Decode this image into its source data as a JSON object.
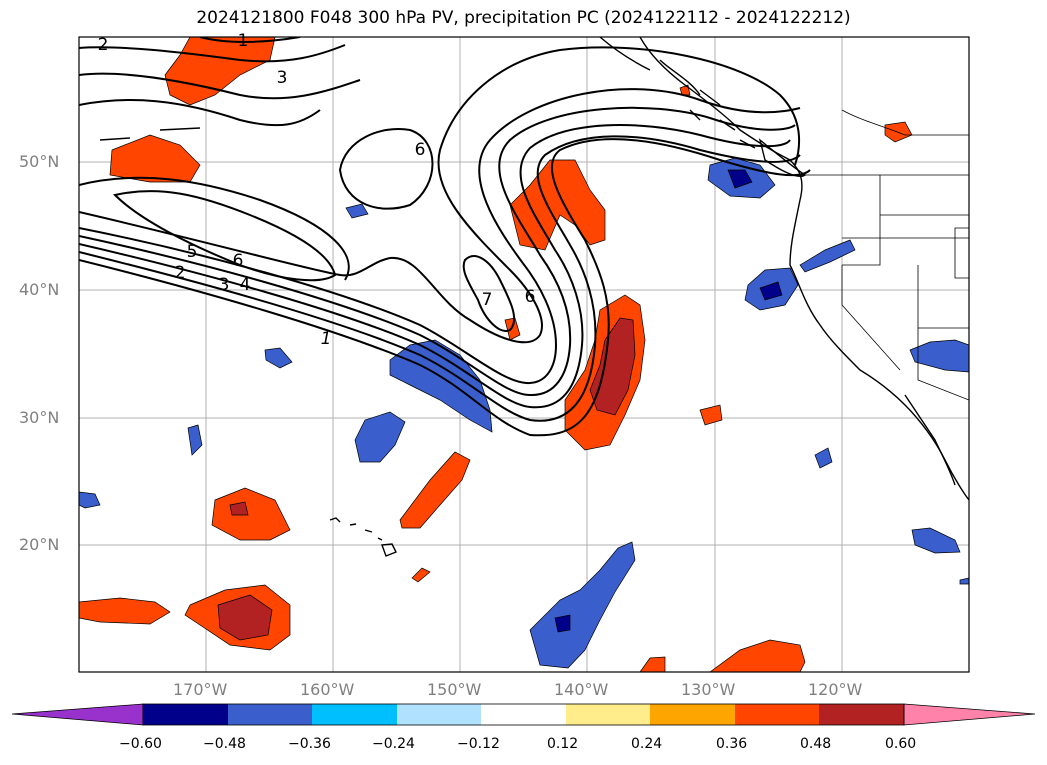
{
  "title": "2024121800 F048 300 hPa PV, precipitation PC (2024122112 - 2024122212)",
  "lat_labels": [
    "50°N",
    "40°N",
    "30°N",
    "20°N"
  ],
  "lon_labels": [
    "170°W",
    "160°W",
    "150°W",
    "140°W",
    "130°W",
    "120°W"
  ],
  "contour_labels": [
    "1",
    "2",
    "3",
    "4",
    "5",
    "6",
    "7",
    "2",
    "3",
    "6",
    "6",
    "1"
  ],
  "colorbar": {
    "ticks": [
      "−0.60",
      "−0.48",
      "−0.36",
      "−0.24",
      "−0.12",
      "0.12",
      "0.24",
      "0.36",
      "0.48",
      "0.60"
    ],
    "colors": [
      "#9932cc",
      "#00008b",
      "#3a5fcd",
      "#00bfff",
      "#b0e2ff",
      "#ffffff",
      "#ffec8b",
      "#ffa500",
      "#ff4500",
      "#b22222",
      "#ff82ab"
    ]
  }
}
